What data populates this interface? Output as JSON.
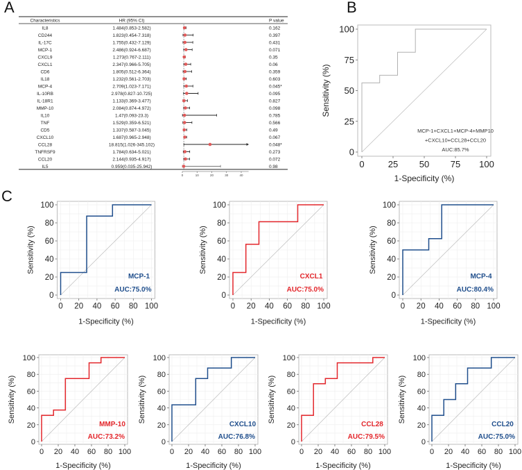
{
  "panels": {
    "a": "A",
    "b": "B",
    "c": "C"
  },
  "forest": {
    "columns": [
      "Characteristics",
      "HR (95% CI)",
      "P value"
    ],
    "axis_ticks": [
      0,
      10,
      20,
      30,
      40
    ],
    "xlim": [
      0,
      45
    ],
    "reference_line": 1,
    "point_color": "#e05a5a",
    "rows": [
      {
        "name": "IL8",
        "hr_text": "1.484(0.853-2.582)",
        "hr": 1.484,
        "lo": 0.853,
        "hi": 2.582,
        "p": "0.162"
      },
      {
        "name": "CD244",
        "hr_text": "1.823(0.454-7.318)",
        "hr": 1.823,
        "lo": 0.454,
        "hi": 7.318,
        "p": "0.397"
      },
      {
        "name": "IL-17C",
        "hr_text": "1.755(0.432-7.129)",
        "hr": 1.755,
        "lo": 0.432,
        "hi": 7.129,
        "p": "0.431"
      },
      {
        "name": "MCP-1",
        "hr_text": "2.486(0.924-6.687)",
        "hr": 2.486,
        "lo": 0.924,
        "hi": 6.687,
        "p": "0.071"
      },
      {
        "name": "CXCL9",
        "hr_text": "1.273(0.767-2.111)",
        "hr": 1.273,
        "lo": 0.767,
        "hi": 2.111,
        "p": "0.35"
      },
      {
        "name": "CXCL1",
        "hr_text": "2.347(0.966-5.705)",
        "hr": 2.347,
        "lo": 0.966,
        "hi": 5.705,
        "p": "0.06"
      },
      {
        "name": "CD6",
        "hr_text": "1.805(0.512-6.364)",
        "hr": 1.805,
        "lo": 0.512,
        "hi": 6.364,
        "p": "0.359"
      },
      {
        "name": "IL18",
        "hr_text": "1.232(0.561-2.703)",
        "hr": 1.232,
        "lo": 0.561,
        "hi": 2.703,
        "p": "0.603"
      },
      {
        "name": "MCP-4",
        "hr_text": "2.709(1.023-7.171)",
        "hr": 2.709,
        "lo": 1.023,
        "hi": 7.171,
        "p": "0.045*"
      },
      {
        "name": "IL-10RB",
        "hr_text": "2.978(0.827-10.725)",
        "hr": 2.978,
        "lo": 0.827,
        "hi": 10.725,
        "p": "0.095"
      },
      {
        "name": "IL-18R1",
        "hr_text": "1.133(0.369-3.477)",
        "hr": 1.133,
        "lo": 0.369,
        "hi": 3.477,
        "p": "0.827"
      },
      {
        "name": "MMP-10",
        "hr_text": "2.084(0.874-4.972)",
        "hr": 2.084,
        "lo": 0.874,
        "hi": 4.972,
        "p": "0.098"
      },
      {
        "name": "IL10",
        "hr_text": "1.47(0.093-23.3)",
        "hr": 1.47,
        "lo": 0.093,
        "hi": 23.3,
        "p": "0.785"
      },
      {
        "name": "TNF",
        "hr_text": "1.529(0.359-6.521)",
        "hr": 1.529,
        "lo": 0.359,
        "hi": 6.521,
        "p": "0.566"
      },
      {
        "name": "CD5",
        "hr_text": "1.337(0.587-3.045)",
        "hr": 1.337,
        "lo": 0.587,
        "hi": 3.045,
        "p": "0.49"
      },
      {
        "name": "CXCL10",
        "hr_text": "1.687(0.965-2.948)",
        "hr": 1.687,
        "lo": 0.965,
        "hi": 2.948,
        "p": "0.067"
      },
      {
        "name": "CCL28",
        "hr_text": "18.815(1.026-345.102)",
        "hr": 18.815,
        "lo": 1.026,
        "hi": 345.102,
        "p": "0.048*"
      },
      {
        "name": "TNFRSF9",
        "hr_text": "1.784(0.634-5.021)",
        "hr": 1.784,
        "lo": 0.634,
        "hi": 5.021,
        "p": "0.273"
      },
      {
        "name": "CCL20",
        "hr_text": "2.144(0.935-4.917)",
        "hr": 2.144,
        "lo": 0.935,
        "hi": 4.917,
        "p": "0.072"
      },
      {
        "name": "IL5",
        "hr_text": "0.959(0.035-25.942)",
        "hr": 0.959,
        "lo": 0.035,
        "hi": 25.942,
        "p": "0.98"
      }
    ]
  },
  "chart_data": [
    {
      "type": "line",
      "panel": "B",
      "xlabel": "1-Specificity (%)",
      "ylabel": "Sensitivity (%)",
      "xlim": [
        0,
        100
      ],
      "ylim": [
        0,
        100
      ],
      "xticks": [
        0,
        25,
        50,
        75,
        100
      ],
      "yticks": [
        0,
        25,
        50,
        75,
        100
      ],
      "color": "#b0b0b0",
      "annotation": [
        "MCP-1+CXCL1+MCP-4+MMP10",
        "+CXCL10+CCL28+CCL20",
        "AUC:85.7%"
      ],
      "x": [
        0,
        0,
        14.3,
        14.3,
        28.6,
        28.6,
        42.9,
        42.9,
        100
      ],
      "y": [
        0,
        56.25,
        56.25,
        62.5,
        62.5,
        81.25,
        81.25,
        100,
        100
      ]
    },
    {
      "type": "line",
      "panel": "C",
      "name": "MCP-1",
      "auc": "AUC:75.0%",
      "color": "#1f4e8c",
      "xlabel": "1-Specificity (%)",
      "ylabel": "Sensitivity (%)",
      "xlim": [
        0,
        100
      ],
      "ylim": [
        0,
        100
      ],
      "xticks": [
        0,
        20,
        40,
        60,
        80,
        100
      ],
      "yticks": [
        0,
        20,
        40,
        60,
        80,
        100
      ],
      "x": [
        0,
        0,
        28.6,
        28.6,
        57.1,
        57.1,
        100
      ],
      "y": [
        0,
        25,
        25,
        87.5,
        87.5,
        100,
        100
      ]
    },
    {
      "type": "line",
      "panel": "C",
      "name": "CXCL1",
      "auc": "AUC:75.0%",
      "color": "#e3262b",
      "xlabel": "1-Specificity (%)",
      "ylabel": "Sensitivity (%)",
      "xlim": [
        0,
        100
      ],
      "ylim": [
        0,
        100
      ],
      "xticks": [
        0,
        20,
        40,
        60,
        80,
        100
      ],
      "yticks": [
        0,
        20,
        40,
        60,
        80,
        100
      ],
      "x": [
        0,
        0,
        14.3,
        14.3,
        28.6,
        28.6,
        71.4,
        71.4,
        100
      ],
      "y": [
        0,
        25,
        25,
        56.25,
        56.25,
        81.25,
        81.25,
        100,
        100
      ]
    },
    {
      "type": "line",
      "panel": "C",
      "name": "MCP-4",
      "auc": "AUC:80.4%",
      "color": "#1f4e8c",
      "xlabel": "1-Specificity (%)",
      "ylabel": "Sensitivity (%)",
      "xlim": [
        0,
        100
      ],
      "ylim": [
        0,
        100
      ],
      "xticks": [
        0,
        20,
        40,
        60,
        80,
        100
      ],
      "yticks": [
        0,
        20,
        40,
        60,
        80,
        100
      ],
      "x": [
        0,
        0,
        28.6,
        28.6,
        42.9,
        42.9,
        100
      ],
      "y": [
        0,
        50,
        50,
        62.5,
        62.5,
        100,
        100
      ]
    },
    {
      "type": "line",
      "panel": "C",
      "name": "MMP-10",
      "auc": "AUC:73.2%",
      "color": "#e3262b",
      "xlabel": "1-Specificity (%)",
      "ylabel": "Sensitivity (%)",
      "xlim": [
        0,
        100
      ],
      "ylim": [
        0,
        100
      ],
      "xticks": [
        0,
        20,
        40,
        60,
        80,
        100
      ],
      "yticks": [
        0,
        20,
        40,
        60,
        80,
        100
      ],
      "x": [
        0,
        0,
        14.3,
        14.3,
        28.6,
        28.6,
        57.1,
        57.1,
        71.4,
        71.4,
        100
      ],
      "y": [
        0,
        31.25,
        31.25,
        37.5,
        37.5,
        75,
        75,
        93.75,
        93.75,
        100,
        100
      ]
    },
    {
      "type": "line",
      "panel": "C",
      "name": "CXCL10",
      "auc": "AUC:76.8%",
      "color": "#1f4e8c",
      "xlabel": "1-Specificity (%)",
      "ylabel": "Sensitivity (%)",
      "xlim": [
        0,
        100
      ],
      "ylim": [
        0,
        100
      ],
      "xticks": [
        0,
        20,
        40,
        60,
        80,
        100
      ],
      "yticks": [
        0,
        20,
        40,
        60,
        80,
        100
      ],
      "x": [
        0,
        0,
        28.6,
        28.6,
        42.9,
        42.9,
        71.4,
        71.4,
        100
      ],
      "y": [
        0,
        43.75,
        43.75,
        75,
        75,
        87.5,
        87.5,
        100,
        100
      ]
    },
    {
      "type": "line",
      "panel": "C",
      "name": "CCL28",
      "auc": "AUC:79.5%",
      "color": "#e3262b",
      "xlabel": "1-Specificity (%)",
      "ylabel": "Sensitivity (%)",
      "xlim": [
        0,
        100
      ],
      "ylim": [
        0,
        100
      ],
      "xticks": [
        0,
        20,
        40,
        60,
        80,
        100
      ],
      "yticks": [
        0,
        20,
        40,
        60,
        80,
        100
      ],
      "x": [
        0,
        0,
        14.3,
        14.3,
        28.6,
        28.6,
        42.9,
        42.9,
        85.7,
        85.7,
        100
      ],
      "y": [
        0,
        31.25,
        31.25,
        68.75,
        68.75,
        75,
        75,
        93.75,
        93.75,
        100,
        100
      ]
    },
    {
      "type": "line",
      "panel": "C",
      "name": "CCL20",
      "auc": "AUC:75.0%",
      "color": "#1f4e8c",
      "xlabel": "1-Specificity (%)",
      "ylabel": "Sensitivity (%)",
      "xlim": [
        0,
        100
      ],
      "ylim": [
        0,
        100
      ],
      "xticks": [
        0,
        20,
        40,
        60,
        80,
        100
      ],
      "yticks": [
        0,
        20,
        40,
        60,
        80,
        100
      ],
      "x": [
        0,
        0,
        14.3,
        14.3,
        28.6,
        28.6,
        42.9,
        42.9,
        71.4,
        71.4,
        100
      ],
      "y": [
        0,
        31.25,
        31.25,
        50,
        50,
        68.75,
        68.75,
        87.5,
        87.5,
        100,
        100
      ]
    }
  ]
}
